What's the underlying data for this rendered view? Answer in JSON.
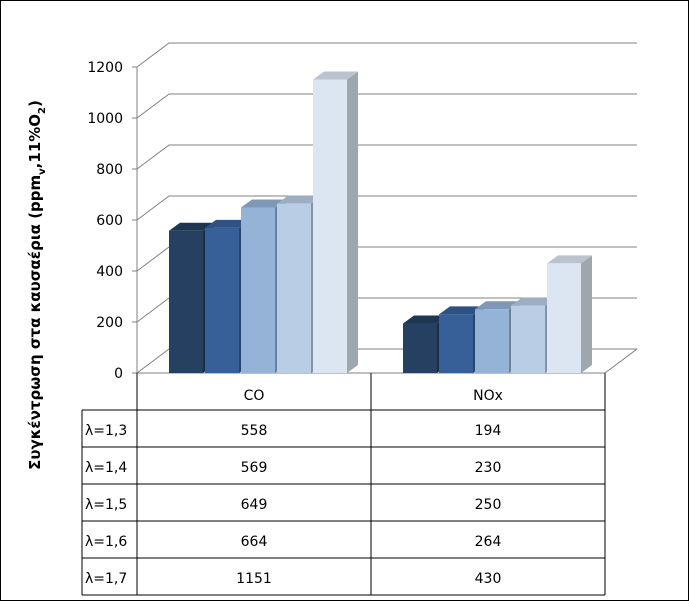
{
  "chart_data": {
    "type": "bar",
    "style": "3d-clustered-column-with-data-table",
    "title": "",
    "ylabel_parts": [
      "Συγκέντρωση στα καυσαέρια (ppm",
      "v",
      ",11%O",
      "2",
      ")"
    ],
    "ylim": [
      0,
      1200
    ],
    "yticks": [
      "0",
      "200",
      "400",
      "600",
      "800",
      "1000",
      "1200"
    ],
    "grid": true,
    "categories": [
      "CO",
      "NOx"
    ],
    "series": [
      {
        "name": "λ=1,3",
        "values": [
          558,
          194
        ],
        "color": "#254061",
        "display": [
          "558",
          "194"
        ]
      },
      {
        "name": "λ=1,4",
        "values": [
          569,
          230
        ],
        "color": "#376099",
        "display": [
          "569",
          "230"
        ]
      },
      {
        "name": "λ=1,5",
        "values": [
          649,
          250
        ],
        "color": "#95b3d7",
        "display": [
          "649",
          "250"
        ]
      },
      {
        "name": "λ=1,6",
        "values": [
          664,
          264
        ],
        "color": "#b9cde5",
        "display": [
          "664",
          "264"
        ]
      },
      {
        "name": "λ=1,7",
        "values": [
          1151,
          430
        ],
        "color": "#dce6f2",
        "display": [
          "1151",
          "430"
        ]
      }
    ]
  }
}
